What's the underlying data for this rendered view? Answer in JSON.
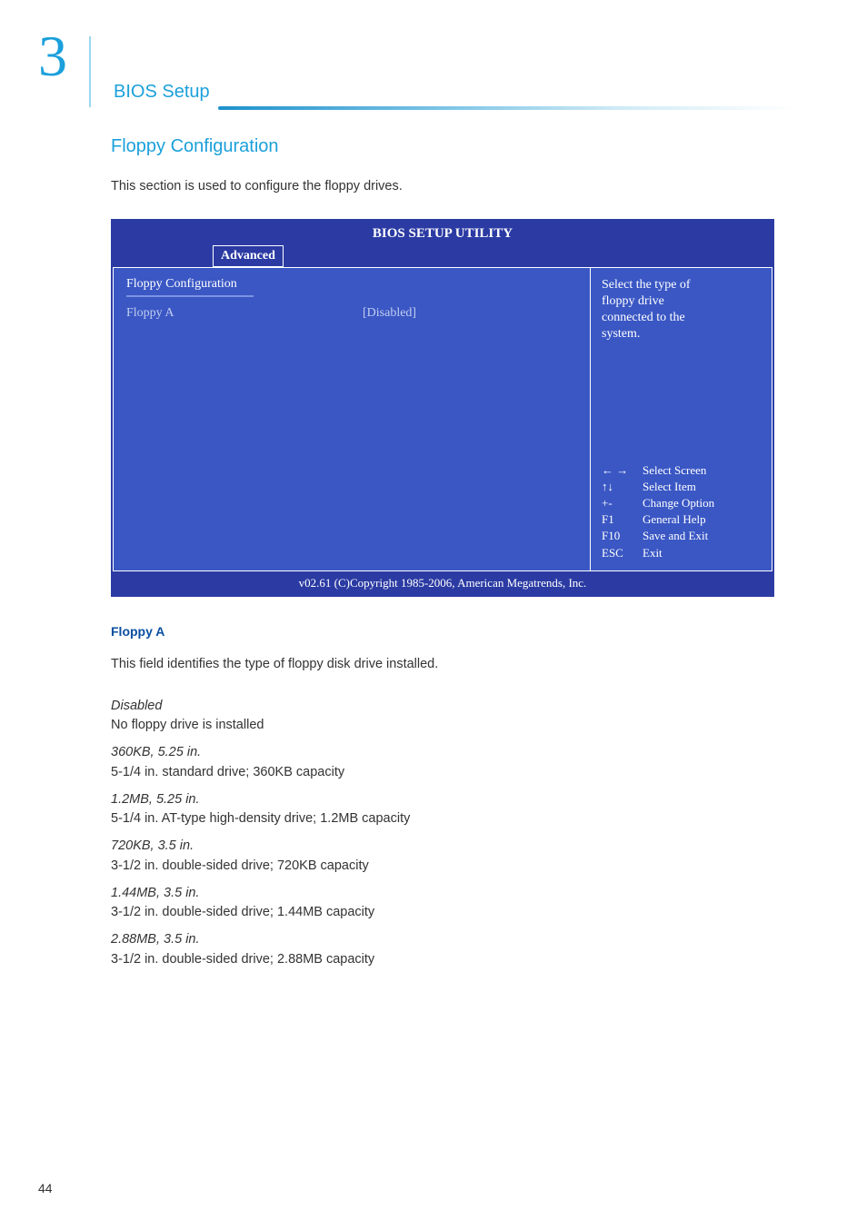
{
  "chapter_number": "3",
  "section_title": "BIOS Setup",
  "subsection_title": "Floppy Configuration",
  "intro_text": "This section is used to configure the floppy drives.",
  "bios": {
    "title": "BIOS SETUP UTILITY",
    "tab": "Advanced",
    "left_title": "Floppy Configuration",
    "row_label": "Floppy A",
    "row_value": "[Disabled]",
    "help_lines": {
      "l1": "Select the type of",
      "l2": "floppy drive",
      "l3": "connected to the",
      "l4": "system."
    },
    "keys": {
      "k1": "← →",
      "v1": "Select Screen",
      "k2": "↑↓",
      "v2": "Select Item",
      "k3": "+-",
      "v3": "Change Option",
      "k4": "F1",
      "v4": "General Help",
      "k5": "F10",
      "v5": "Save and Exit",
      "k6": "ESC",
      "v6": "Exit"
    },
    "footer": "v02.61 (C)Copyright 1985-2006, American Megatrends, Inc."
  },
  "field": {
    "title": "Floppy A",
    "desc": "This field identifies the type of floppy disk drive installed."
  },
  "options": {
    "o1_label": "Disabled",
    "o1_desc": "No floppy drive is installed",
    "o2_label": "360KB, 5.25 in.",
    "o2_desc": "5-1/4 in. standard drive; 360KB capacity",
    "o3_label": "1.2MB, 5.25 in.",
    "o3_desc": "5-1/4 in. AT-type high-density drive; 1.2MB capacity",
    "o4_label": "720KB, 3.5 in.",
    "o4_desc": "3-1/2 in. double-sided drive; 720KB capacity",
    "o5_label": "1.44MB, 3.5 in.",
    "o5_desc": "3-1/2 in. double-sided drive; 1.44MB capacity",
    "o6_label": "2.88MB, 3.5 in.",
    "o6_desc": "3-1/2 in. double-sided drive; 2.88MB capacity"
  },
  "page_number": "44"
}
